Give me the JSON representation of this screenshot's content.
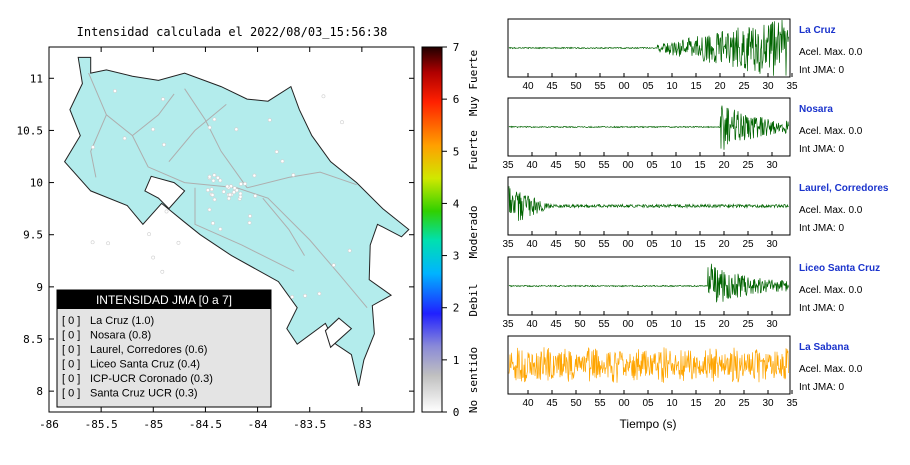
{
  "map": {
    "title": "Intensidad calculada el 2022/08/03_15:56:38",
    "x_ticks": [
      "-86",
      "-85.5",
      "-85",
      "-84.5",
      "-84",
      "-83.5",
      "-83"
    ],
    "y_ticks": [
      "11",
      "10.5",
      "10",
      "9.5",
      "9",
      "8.5",
      "8"
    ],
    "land_color": "#b3ecec",
    "ocean_color": "#ffffff"
  },
  "colorbar": {
    "ticks": [
      "7",
      "6",
      "5",
      "4",
      "3",
      "2",
      "1",
      "0"
    ],
    "labels": [
      "Muy Fuerte",
      "Fuerte",
      "Moderado",
      "Debil",
      "No sentido"
    ]
  },
  "legend": {
    "title": "INTENSIDAD JMA [0 a 7]",
    "items": [
      {
        "level": "[ 0 ]",
        "name": "La Cruz (1.0)"
      },
      {
        "level": "[ 0 ]",
        "name": "Nosara (0.8)"
      },
      {
        "level": "[ 0 ]",
        "name": "Laurel, Corredores (0.6)"
      },
      {
        "level": "[ 0 ]",
        "name": "Liceo Santa Cruz (0.4)"
      },
      {
        "level": "[ 0 ]",
        "name": "ICP-UCR Coronado (0.3)"
      },
      {
        "level": "[ 0 ]",
        "name": "Santa Cruz UCR (0.3)"
      }
    ]
  },
  "chart_data": {
    "type": "line",
    "xlabel": "Tiempo (s)",
    "panels": [
      {
        "station": "La Cruz",
        "acel": "Acel. Max. 0.0",
        "int": "Int JMA: 0",
        "ticks": [
          "40",
          "45",
          "50",
          "55",
          "00",
          "05",
          "10",
          "15",
          "20",
          "25",
          "30",
          "35"
        ],
        "color": "#006400",
        "onset": 0.53
      },
      {
        "station": "Nosara",
        "acel": "Acel. Max. 0.0",
        "int": "Int JMA: 0",
        "ticks": [
          "35",
          "40",
          "45",
          "50",
          "55",
          "00",
          "05",
          "10",
          "15",
          "20",
          "25",
          "30"
        ],
        "color": "#006400",
        "onset": 0.755
      },
      {
        "station": "Laurel, Corredores",
        "acel": "Acel. Max. 0.0",
        "int": "Int JMA: 0",
        "ticks": [
          "35",
          "40",
          "45",
          "50",
          "55",
          "00",
          "05",
          "10",
          "15",
          "20",
          "25",
          "30"
        ],
        "color": "#006400",
        "onset": 0.0
      },
      {
        "station": "Liceo Santa Cruz",
        "acel": "Acel. Max. 0.0",
        "int": "Int JMA: 0",
        "ticks": [
          "35",
          "40",
          "45",
          "50",
          "55",
          "00",
          "05",
          "10",
          "15",
          "20",
          "25",
          "30"
        ],
        "color": "#006400",
        "onset": 0.71
      },
      {
        "station": "La Sabana",
        "acel": "Acel. Max. 0.0",
        "int": "Int JMA: 0",
        "ticks": [
          "40",
          "45",
          "50",
          "55",
          "00",
          "05",
          "10",
          "15",
          "20",
          "25",
          "30",
          "35"
        ],
        "color": "#ffa500",
        "onset": 0.0
      }
    ]
  }
}
